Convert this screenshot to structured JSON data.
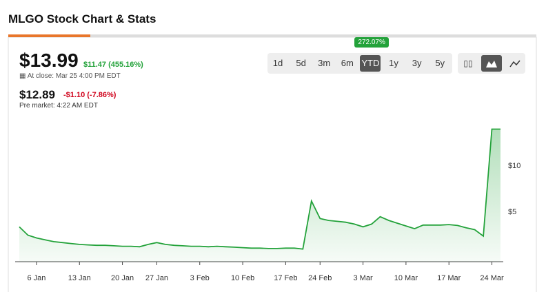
{
  "header": {
    "title": "MLGO Stock Chart & Stats"
  },
  "quote": {
    "price": "$13.99",
    "change": "$11.47 (455.16%)",
    "close_note": "At close: Mar 25 4:00 PM EDT",
    "pre_price": "$12.89",
    "pre_change": "-$1.10 (-7.86%)",
    "pre_note": "Pre market: 4:22 AM EDT"
  },
  "ranges": {
    "badge": "272.07%",
    "buttons": [
      "1d",
      "5d",
      "3m",
      "6m",
      "YTD",
      "1y",
      "3y",
      "5y"
    ],
    "selected": "YTD"
  },
  "chart_data": {
    "type": "area",
    "color": "#23a23a",
    "x": [
      null,
      null,
      "6 Jan",
      null,
      null,
      null,
      null,
      "13 Jan",
      null,
      null,
      null,
      null,
      "20 Jan",
      null,
      null,
      null,
      "27 Jan",
      null,
      null,
      null,
      null,
      "3 Feb",
      null,
      null,
      null,
      null,
      "10 Feb",
      null,
      null,
      null,
      null,
      "17 Feb",
      null,
      null,
      null,
      "24 Feb",
      null,
      null,
      null,
      null,
      "3 Mar",
      null,
      null,
      null,
      null,
      "10 Mar",
      null,
      null,
      null,
      null,
      "17 Mar",
      null,
      null,
      null,
      null,
      "24 Mar",
      null
    ],
    "series": [
      {
        "name": "MLGO",
        "color": "#23a23a",
        "values": [
          3.4,
          2.5,
          2.2,
          2.0,
          1.8,
          1.7,
          1.6,
          1.5,
          1.45,
          1.4,
          1.4,
          1.35,
          1.3,
          1.3,
          1.25,
          1.5,
          1.7,
          1.5,
          1.4,
          1.35,
          1.3,
          1.3,
          1.25,
          1.3,
          1.25,
          1.2,
          1.15,
          1.1,
          1.1,
          1.05,
          1.05,
          1.1,
          1.1,
          1.0,
          6.2,
          4.3,
          4.1,
          4.0,
          3.9,
          3.7,
          3.4,
          3.7,
          4.5,
          4.1,
          3.8,
          3.5,
          3.2,
          3.6,
          3.6,
          3.6,
          3.65,
          3.55,
          3.3,
          3.1,
          2.4,
          13.99,
          13.99
        ]
      }
    ],
    "ylim": [
      0,
      15
    ],
    "yticks": [
      {
        "value": 5,
        "label": "$5"
      },
      {
        "value": 10,
        "label": "$10"
      }
    ]
  }
}
